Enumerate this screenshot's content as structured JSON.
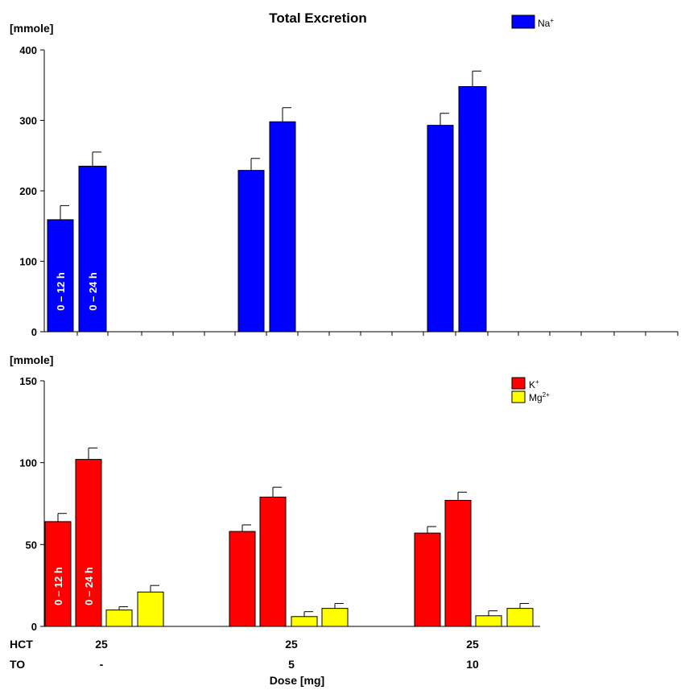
{
  "chart_data": [
    {
      "type": "bar",
      "title": "Total Excretion",
      "ylabel": "[mmole]",
      "ylim": [
        0,
        400
      ],
      "yticks": [
        0,
        100,
        200,
        300,
        400
      ],
      "groups": [
        "HCT 25 / TO -",
        "HCT 25 / TO 5",
        "HCT 25 / TO 10"
      ],
      "bar_labels": [
        "0 – 12 h",
        "0 – 24 h"
      ],
      "colors": {
        "Na": "#0000ff"
      },
      "series": [
        {
          "name": "Na",
          "ion": "Na",
          "charge": "+",
          "period": "0 – 12 h",
          "values": [
            159,
            229,
            293
          ],
          "errors": [
            20,
            17,
            17
          ]
        },
        {
          "name": "Na",
          "ion": "Na",
          "charge": "+",
          "period": "0 – 24 h",
          "values": [
            235,
            298,
            348
          ],
          "errors": [
            20,
            20,
            22
          ]
        }
      ],
      "legend": [
        {
          "ion": "Na",
          "charge": "+",
          "color": "#0000ff"
        }
      ],
      "legend_position": "top-right"
    },
    {
      "type": "bar",
      "ylabel": "[mmole]",
      "ylim": [
        0,
        150
      ],
      "yticks": [
        0,
        50,
        100,
        150
      ],
      "groups": [
        "HCT 25 / TO -",
        "HCT 25 / TO 5",
        "HCT 25 / TO 10"
      ],
      "bar_labels": [
        "0 – 12 h",
        "0 – 24 h"
      ],
      "colors": {
        "K": "#ff0000",
        "Mg": "#ffff00"
      },
      "series": [
        {
          "name": "K",
          "ion": "K",
          "charge": "+",
          "period": "0 – 12 h",
          "values": [
            64,
            58,
            57
          ],
          "errors": [
            5,
            4,
            4
          ]
        },
        {
          "name": "K",
          "ion": "K",
          "charge": "+",
          "period": "0 – 24 h",
          "values": [
            102,
            79,
            77
          ],
          "errors": [
            7,
            6,
            5
          ]
        },
        {
          "name": "Mg",
          "ion": "Mg",
          "charge": "2+",
          "period": "0 – 12 h",
          "values": [
            10,
            6,
            6.5
          ],
          "errors": [
            2,
            3,
            3
          ]
        },
        {
          "name": "Mg",
          "ion": "Mg",
          "charge": "2+",
          "period": "0 – 24 h",
          "values": [
            21,
            11,
            11
          ],
          "errors": [
            4,
            3,
            3
          ]
        }
      ],
      "legend": [
        {
          "ion": "K",
          "charge": "+",
          "color": "#ff0000"
        },
        {
          "ion": "Mg",
          "charge": "2+",
          "color": "#ffff00"
        }
      ],
      "legend_position": "top-right"
    }
  ],
  "xaxis": {
    "rows": [
      {
        "label": "HCT",
        "values": [
          "25",
          "25",
          "25"
        ]
      },
      {
        "label": "TO",
        "values": [
          "-",
          "5",
          "10"
        ]
      }
    ],
    "xlabel": "Dose [mg]"
  }
}
